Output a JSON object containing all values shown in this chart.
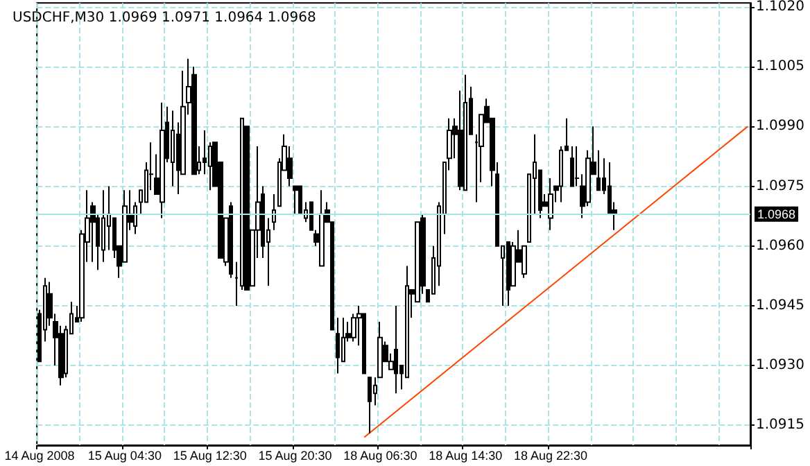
{
  "chart_data": {
    "type": "candlestick",
    "title": "USDCHF,M30 1.0969 1.0971 1.0964 1.0968",
    "categories": [
      "14 Aug 2008",
      null,
      null,
      null,
      null,
      null,
      null,
      null,
      null,
      null,
      null,
      null,
      null,
      null,
      null,
      null,
      "15 Aug 04:30",
      null,
      null,
      null,
      null,
      null,
      null,
      null,
      null,
      null,
      null,
      null,
      null,
      null,
      null,
      null,
      "15 Aug 12:30",
      null,
      null,
      null,
      null,
      null,
      null,
      null,
      null,
      null,
      null,
      null,
      null,
      null,
      null,
      null,
      "15 Aug 20:30",
      null,
      null,
      null,
      null,
      null,
      null,
      null,
      null,
      null,
      null,
      null,
      null,
      null,
      null,
      null,
      "18 Aug 06:30",
      null,
      null,
      null,
      null,
      null,
      null,
      null,
      null,
      null,
      null,
      null,
      null,
      null,
      null,
      null,
      "18 Aug 14:30",
      null,
      null,
      null,
      null,
      null,
      null,
      null,
      null,
      null,
      null,
      null,
      null,
      null,
      null,
      null,
      "18 Aug 22:30",
      null,
      null,
      null,
      null,
      null,
      null,
      null,
      null,
      null,
      null,
      null,
      null,
      null,
      null,
      null,
      null,
      null,
      null,
      null,
      null,
      null,
      null,
      null,
      null,
      null,
      null,
      null,
      null,
      null,
      null,
      null,
      null,
      null,
      null,
      null,
      null,
      null
    ],
    "ohlc": [
      [
        1.0943,
        1.0944,
        1.0931,
        1.0931
      ],
      [
        1.0939,
        1.0952,
        1.0936,
        1.095
      ],
      [
        1.0948,
        1.0951,
        1.094,
        1.0942
      ],
      [
        1.0941,
        1.0943,
        1.093,
        1.0937
      ],
      [
        1.0938,
        1.094,
        1.0925,
        1.0927
      ],
      [
        1.0928,
        1.094,
        1.0927,
        1.0939
      ],
      [
        1.0938,
        1.0946,
        1.0938,
        1.0943
      ],
      [
        1.0942,
        1.0945,
        1.0941,
        1.0941
      ],
      [
        1.0942,
        1.0964,
        1.0941,
        1.0963
      ],
      [
        1.0961,
        1.0974,
        1.0956,
        1.0967
      ],
      [
        1.097,
        1.0971,
        1.0956,
        1.0966
      ],
      [
        1.0967,
        1.0968,
        1.0954,
        1.096
      ],
      [
        1.0959,
        1.0974,
        1.0956,
        1.0967
      ],
      [
        1.0965,
        1.0975,
        1.0959,
        1.0968
      ],
      [
        1.0967,
        1.0967,
        1.0957,
        1.0959
      ],
      [
        1.096,
        1.096,
        1.0952,
        1.0955
      ],
      [
        1.0956,
        1.0974,
        1.0956,
        1.097
      ],
      [
        1.0968,
        1.0974,
        1.0964,
        1.0966
      ],
      [
        1.0965,
        1.0971,
        1.0963,
        1.097
      ],
      [
        1.0971,
        1.0974,
        1.0968,
        1.0974
      ],
      [
        1.0971,
        1.0981,
        1.0971,
        1.0979
      ],
      [
        1.0978,
        1.0986,
        1.0974,
        1.0978
      ],
      [
        1.0977,
        1.0983,
        1.0973,
        1.0973
      ],
      [
        1.0971,
        1.0996,
        1.0967,
        1.0989
      ],
      [
        1.0991,
        1.0995,
        1.0981,
        1.0982
      ],
      [
        1.0981,
        1.0994,
        1.0975,
        1.0989
      ],
      [
        1.0988,
        1.0991,
        1.0973,
        1.0979
      ],
      [
        1.0978,
        1.1004,
        1.0978,
        1.0995
      ],
      [
        1.0996,
        1.1007,
        1.0993,
        1.1
      ],
      [
        1.1003,
        1.1005,
        1.0978,
        1.0978
      ],
      [
        1.0979,
        1.0985,
        1.0978,
        1.0981
      ],
      [
        1.0982,
        1.0989,
        1.0978,
        1.0981
      ],
      [
        1.098,
        1.0986,
        1.0974,
        1.0985
      ],
      [
        1.0986,
        1.0986,
        1.0975,
        1.0975
      ],
      [
        1.0981,
        1.0981,
        1.0957,
        1.0957
      ],
      [
        1.0956,
        1.0967,
        1.0955,
        1.0967
      ],
      [
        1.097,
        1.0971,
        1.0952,
        1.0953
      ],
      [
        1.0952,
        1.0956,
        1.0945,
        1.0952
      ],
      [
        1.095,
        1.0992,
        1.0949,
        1.0992
      ],
      [
        1.099,
        1.099,
        1.0949,
        1.0949
      ],
      [
        1.095,
        1.0964,
        1.095,
        1.0964
      ],
      [
        1.0964,
        1.0985,
        1.0957,
        1.0971
      ],
      [
        1.0973,
        1.0975,
        1.0957,
        1.096
      ],
      [
        1.0961,
        1.0967,
        1.095,
        1.0964
      ],
      [
        1.0966,
        1.0973,
        1.0964,
        1.0969
      ],
      [
        1.097,
        1.0982,
        1.097,
        1.0981
      ],
      [
        1.0979,
        1.0988,
        1.0979,
        1.0985
      ],
      [
        1.0982,
        1.0985,
        1.0975,
        1.0977
      ],
      [
        1.0975,
        1.0975,
        1.0968,
        1.0974
      ],
      [
        1.0975,
        1.0975,
        1.0968,
        1.0968
      ],
      [
        1.0967,
        1.0971,
        1.0966,
        1.0969
      ],
      [
        1.0971,
        1.0971,
        1.0964,
        1.0964
      ],
      [
        1.0963,
        1.0964,
        1.096,
        1.0961
      ],
      [
        1.0955,
        1.0974,
        1.0955,
        1.0968
      ],
      [
        1.0969,
        1.0971,
        1.0966,
        1.0966
      ],
      [
        1.0966,
        1.0966,
        1.0939,
        1.0939
      ],
      [
        1.0938,
        1.0942,
        1.0928,
        1.0932
      ],
      [
        1.0931,
        1.0942,
        1.0931,
        1.0937
      ],
      [
        1.0938,
        1.0941,
        1.0936,
        1.0937
      ],
      [
        1.0937,
        1.0943,
        1.0936,
        1.0942
      ],
      [
        1.0942,
        1.0945,
        1.0935,
        1.0943
      ],
      [
        1.0943,
        1.0943,
        1.0928,
        1.0928
      ],
      [
        1.0927,
        1.0927,
        1.0913,
        1.0921
      ],
      [
        1.0923,
        1.0927,
        1.092,
        1.0925
      ],
      [
        1.0927,
        1.0941,
        1.0927,
        1.0937
      ],
      [
        1.0935,
        1.0936,
        1.0931,
        1.0931
      ],
      [
        1.0929,
        1.0933,
        1.0929,
        1.0931
      ],
      [
        1.0934,
        1.0945,
        1.0923,
        1.0928
      ],
      [
        1.093,
        1.093,
        1.0924,
        1.0928
      ],
      [
        1.0927,
        1.0955,
        1.0927,
        1.095
      ],
      [
        1.0949,
        1.0949,
        1.0942,
        1.0948
      ],
      [
        1.0946,
        1.0966,
        1.0946,
        1.0966
      ],
      [
        1.0967,
        1.0968,
        1.0948,
        1.095
      ],
      [
        1.0949,
        1.0949,
        1.0946,
        1.0946
      ],
      [
        1.0948,
        1.096,
        1.0948,
        1.0957
      ],
      [
        1.0955,
        1.0971,
        1.095,
        1.097
      ],
      [
        1.0968,
        1.0981,
        1.0963,
        1.0981
      ],
      [
        1.0982,
        1.0992,
        1.0979,
        1.0989
      ],
      [
        1.099,
        1.0992,
        1.0982,
        1.0988
      ],
      [
        1.0989,
        1.0999,
        1.0974,
        1.0975
      ],
      [
        1.0974,
        1.1003,
        1.0974,
        1.0996
      ],
      [
        1.0997,
        1.1,
        1.0988,
        1.0988
      ],
      [
        1.0986,
        1.0988,
        1.0971,
        1.0986
      ],
      [
        1.0985,
        1.0993,
        1.0976,
        1.0993
      ],
      [
        1.0995,
        1.0997,
        1.0991,
        1.0991
      ],
      [
        1.0992,
        1.0992,
        1.0975,
        1.0979
      ],
      [
        1.0978,
        1.0981,
        1.096,
        1.096
      ],
      [
        1.0957,
        1.096,
        1.0945,
        1.096
      ],
      [
        1.0961,
        1.0961,
        1.0945,
        1.0949
      ],
      [
        1.095,
        1.0961,
        1.095,
        1.096
      ],
      [
        1.0959,
        1.0964,
        1.0956,
        1.0956
      ],
      [
        1.0953,
        1.096,
        1.0952,
        1.096
      ],
      [
        1.0961,
        1.0978,
        1.0961,
        1.0978
      ],
      [
        1.0977,
        1.0988,
        1.0968,
        1.0981
      ],
      [
        1.0979,
        1.0979,
        1.0967,
        1.0969
      ],
      [
        1.0971,
        1.0973,
        1.097,
        1.097
      ],
      [
        1.0967,
        1.0977,
        1.0964,
        1.0973
      ],
      [
        1.0975,
        1.0975,
        1.0971,
        1.0974
      ],
      [
        1.0975,
        1.0985,
        1.0971,
        1.0984
      ],
      [
        1.0985,
        1.0992,
        1.0984,
        1.0984
      ],
      [
        1.0982,
        1.0985,
        1.0975,
        1.0975
      ],
      [
        1.0977,
        1.0985,
        1.0975,
        1.0977
      ],
      [
        1.0975,
        1.0978,
        1.0967,
        1.097
      ],
      [
        1.0971,
        1.0984,
        1.097,
        1.0982
      ],
      [
        1.0981,
        1.099,
        1.0978,
        1.0978
      ],
      [
        1.0977,
        1.0984,
        1.0974,
        1.0974
      ],
      [
        1.0977,
        1.0982,
        1.0973,
        1.0974
      ],
      [
        1.0975,
        1.0981,
        1.0968,
        1.0968
      ],
      [
        1.0969,
        1.0971,
        1.0964,
        1.0968
      ],
      null,
      null,
      null,
      null,
      null,
      null,
      null,
      null,
      null,
      null,
      null,
      null,
      null,
      null,
      null,
      null,
      null,
      null,
      null,
      null,
      null,
      null,
      null,
      null,
      null
    ],
    "series": [
      {
        "type": "line",
        "color": "#ff4500",
        "values": [
          null,
          null,
          null,
          null,
          null,
          null,
          null,
          null,
          null,
          null,
          null,
          null,
          null,
          null,
          null,
          null,
          null,
          null,
          null,
          null,
          null,
          null,
          null,
          null,
          null,
          null,
          null,
          null,
          null,
          null,
          null,
          null,
          null,
          null,
          null,
          null,
          null,
          null,
          null,
          null,
          null,
          null,
          null,
          null,
          null,
          null,
          null,
          null,
          null,
          null,
          null,
          null,
          null,
          null,
          null,
          null,
          null,
          null,
          null,
          null,
          null,
          1.0912,
          null,
          null,
          null,
          null,
          null,
          null,
          null,
          null,
          null,
          null,
          null,
          null,
          null,
          null,
          null,
          null,
          null,
          null,
          null,
          null,
          null,
          null,
          null,
          null,
          null,
          null,
          null,
          null,
          null,
          null,
          null,
          null,
          null,
          null,
          null,
          null,
          null,
          null,
          null,
          null,
          null,
          null,
          null,
          null,
          null,
          null,
          null,
          null,
          null,
          null,
          null,
          null,
          null,
          null,
          null,
          null,
          null,
          null,
          null,
          null,
          null,
          null,
          null,
          null,
          null,
          null,
          null,
          null,
          null,
          null,
          null,
          1.099
        ]
      }
    ],
    "ylim": [
      1.091,
      1.1021
    ],
    "yticks": [
      {
        "value": 1.0915,
        "label": "1.0915"
      },
      {
        "value": 1.093,
        "label": "1.0930"
      },
      {
        "value": 1.0945,
        "label": "1.0945"
      },
      {
        "value": 1.096,
        "label": "1.0960"
      },
      {
        "value": 1.0975,
        "label": "1.0975"
      },
      {
        "value": 1.099,
        "label": "1.0990"
      },
      {
        "value": 1.1005,
        "label": "1.1005"
      },
      {
        "value": 1.102,
        "label": "1.1020"
      }
    ],
    "ref_lines": [
      {
        "axis": "y",
        "value": 1.0968,
        "label": "1.0968",
        "color": "#9ee8e8"
      }
    ],
    "grid": true
  }
}
